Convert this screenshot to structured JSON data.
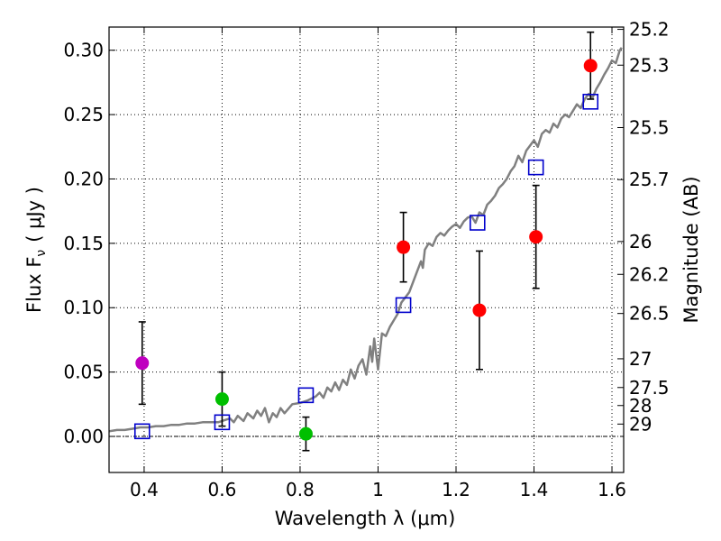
{
  "chart_data": {
    "type": "scatter",
    "xlabel": "Wavelength  λ (μm)",
    "ylabel": "Flux  F",
    "ylabel_sub": "ν",
    "ylabel_unit": "( μJy )",
    "y2label": "Magnitude (AB)",
    "xlim": [
      0.31,
      1.63
    ],
    "ylim": [
      -0.028,
      0.318
    ],
    "grid": true,
    "x_ticks": [
      {
        "value": 0.4,
        "label": "0.4"
      },
      {
        "value": 0.6,
        "label": "0.6"
      },
      {
        "value": 0.8,
        "label": "0.8"
      },
      {
        "value": 1.0,
        "label": "1"
      },
      {
        "value": 1.2,
        "label": "1.2"
      },
      {
        "value": 1.4,
        "label": "1.4"
      },
      {
        "value": 1.6,
        "label": "1.6"
      }
    ],
    "y_ticks": [
      {
        "value": 0.0,
        "label": "0.00"
      },
      {
        "value": 0.05,
        "label": "0.05"
      },
      {
        "value": 0.1,
        "label": "0.10"
      },
      {
        "value": 0.15,
        "label": "0.15"
      },
      {
        "value": 0.2,
        "label": "0.20"
      },
      {
        "value": 0.25,
        "label": "0.25"
      },
      {
        "value": 0.3,
        "label": "0.30"
      }
    ],
    "mag_ticks": [
      {
        "label": "25.2",
        "flux": 0.3162
      },
      {
        "label": "25.3",
        "flux": 0.2884
      },
      {
        "label": "25.5",
        "flux": 0.2399
      },
      {
        "label": "25.7",
        "flux": 0.1995
      },
      {
        "label": "26",
        "flux": 0.1514
      },
      {
        "label": "26.2",
        "flux": 0.1259
      },
      {
        "label": "26.5",
        "flux": 0.0955
      },
      {
        "label": "27",
        "flux": 0.0603
      },
      {
        "label": "27.5",
        "flux": 0.038
      },
      {
        "label": "28",
        "flux": 0.024
      },
      {
        "label": "29",
        "flux": 0.0096
      }
    ],
    "series": [
      {
        "kind": "template",
        "color": "#808080",
        "points": [
          [
            0.31,
            0.004
          ],
          [
            0.33,
            0.005
          ],
          [
            0.35,
            0.005
          ],
          [
            0.37,
            0.006
          ],
          [
            0.39,
            0.007
          ],
          [
            0.41,
            0.007
          ],
          [
            0.43,
            0.008
          ],
          [
            0.45,
            0.008
          ],
          [
            0.47,
            0.009
          ],
          [
            0.49,
            0.009
          ],
          [
            0.51,
            0.01
          ],
          [
            0.53,
            0.01
          ],
          [
            0.55,
            0.011
          ],
          [
            0.57,
            0.011
          ],
          [
            0.59,
            0.011
          ],
          [
            0.6,
            0.012
          ],
          [
            0.62,
            0.014
          ],
          [
            0.63,
            0.011
          ],
          [
            0.64,
            0.016
          ],
          [
            0.655,
            0.012
          ],
          [
            0.665,
            0.018
          ],
          [
            0.68,
            0.014
          ],
          [
            0.69,
            0.02
          ],
          [
            0.7,
            0.016
          ],
          [
            0.71,
            0.022
          ],
          [
            0.72,
            0.011
          ],
          [
            0.73,
            0.018
          ],
          [
            0.74,
            0.015
          ],
          [
            0.75,
            0.022
          ],
          [
            0.76,
            0.018
          ],
          [
            0.78,
            0.025
          ],
          [
            0.8,
            0.026
          ],
          [
            0.82,
            0.028
          ],
          [
            0.84,
            0.031
          ],
          [
            0.85,
            0.034
          ],
          [
            0.86,
            0.03
          ],
          [
            0.87,
            0.038
          ],
          [
            0.88,
            0.035
          ],
          [
            0.89,
            0.042
          ],
          [
            0.9,
            0.036
          ],
          [
            0.91,
            0.044
          ],
          [
            0.92,
            0.04
          ],
          [
            0.93,
            0.052
          ],
          [
            0.94,
            0.045
          ],
          [
            0.95,
            0.055
          ],
          [
            0.96,
            0.06
          ],
          [
            0.97,
            0.048
          ],
          [
            0.98,
            0.07
          ],
          [
            0.985,
            0.058
          ],
          [
            0.99,
            0.076
          ],
          [
            1.0,
            0.052
          ],
          [
            1.01,
            0.08
          ],
          [
            1.02,
            0.078
          ],
          [
            1.03,
            0.085
          ],
          [
            1.04,
            0.09
          ],
          [
            1.05,
            0.095
          ],
          [
            1.06,
            0.104
          ],
          [
            1.07,
            0.108
          ],
          [
            1.08,
            0.112
          ],
          [
            1.09,
            0.12
          ],
          [
            1.1,
            0.128
          ],
          [
            1.11,
            0.136
          ],
          [
            1.115,
            0.131
          ],
          [
            1.12,
            0.145
          ],
          [
            1.13,
            0.15
          ],
          [
            1.14,
            0.148
          ],
          [
            1.15,
            0.155
          ],
          [
            1.16,
            0.158
          ],
          [
            1.17,
            0.156
          ],
          [
            1.18,
            0.16
          ],
          [
            1.19,
            0.163
          ],
          [
            1.2,
            0.165
          ],
          [
            1.21,
            0.162
          ],
          [
            1.22,
            0.167
          ],
          [
            1.23,
            0.17
          ],
          [
            1.24,
            0.171
          ],
          [
            1.25,
            0.166
          ],
          [
            1.26,
            0.174
          ],
          [
            1.27,
            0.172
          ],
          [
            1.28,
            0.18
          ],
          [
            1.29,
            0.183
          ],
          [
            1.3,
            0.187
          ],
          [
            1.31,
            0.193
          ],
          [
            1.32,
            0.196
          ],
          [
            1.33,
            0.2
          ],
          [
            1.34,
            0.206
          ],
          [
            1.35,
            0.21
          ],
          [
            1.36,
            0.218
          ],
          [
            1.37,
            0.213
          ],
          [
            1.38,
            0.222
          ],
          [
            1.39,
            0.226
          ],
          [
            1.4,
            0.23
          ],
          [
            1.41,
            0.225
          ],
          [
            1.42,
            0.235
          ],
          [
            1.43,
            0.238
          ],
          [
            1.44,
            0.236
          ],
          [
            1.45,
            0.243
          ],
          [
            1.46,
            0.24
          ],
          [
            1.47,
            0.247
          ],
          [
            1.48,
            0.25
          ],
          [
            1.49,
            0.248
          ],
          [
            1.5,
            0.253
          ],
          [
            1.51,
            0.258
          ],
          [
            1.52,
            0.255
          ],
          [
            1.53,
            0.262
          ],
          [
            1.54,
            0.266
          ],
          [
            1.55,
            0.263
          ],
          [
            1.56,
            0.27
          ],
          [
            1.57,
            0.275
          ],
          [
            1.58,
            0.281
          ],
          [
            1.59,
            0.286
          ],
          [
            1.6,
            0.292
          ],
          [
            1.61,
            0.29
          ],
          [
            1.62,
            0.3
          ],
          [
            1.625,
            0.302
          ]
        ]
      },
      {
        "kind": "model-squares",
        "color": "#0000cc",
        "points": [
          {
            "x": 0.395,
            "y": 0.004
          },
          {
            "x": 0.6,
            "y": 0.011
          },
          {
            "x": 0.815,
            "y": 0.032
          },
          {
            "x": 1.065,
            "y": 0.102
          },
          {
            "x": 1.255,
            "y": 0.166
          },
          {
            "x": 1.405,
            "y": 0.209
          },
          {
            "x": 1.545,
            "y": 0.26
          }
        ]
      },
      {
        "kind": "observed-points",
        "points": [
          {
            "x": 0.395,
            "y": 0.057,
            "err": 0.032,
            "color": "#bf00bf"
          },
          {
            "x": 0.6,
            "y": 0.029,
            "err": 0.021,
            "color": "#00bf00"
          },
          {
            "x": 0.815,
            "y": 0.002,
            "err": 0.013,
            "color": "#00bf00"
          },
          {
            "x": 1.065,
            "y": 0.147,
            "err": 0.027,
            "color": "#ff0000"
          },
          {
            "x": 1.26,
            "y": 0.098,
            "err": 0.046,
            "color": "#ff0000"
          },
          {
            "x": 1.405,
            "y": 0.155,
            "err": 0.04,
            "color": "#ff0000"
          },
          {
            "x": 1.545,
            "y": 0.288,
            "err": 0.026,
            "color": "#ff0000"
          }
        ]
      }
    ]
  }
}
